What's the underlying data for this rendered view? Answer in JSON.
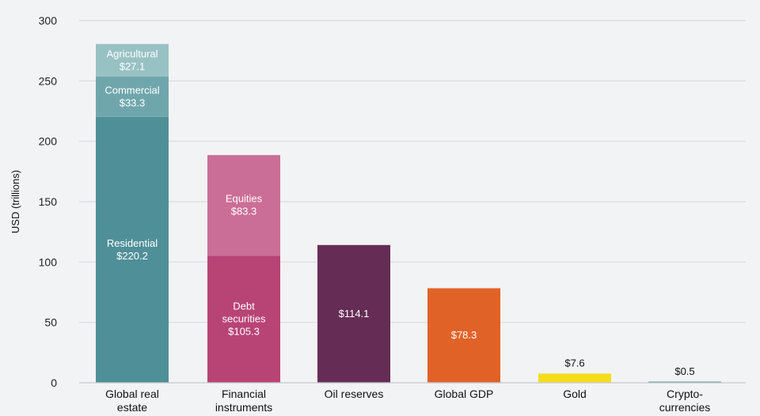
{
  "chart_data": {
    "type": "bar",
    "stacked": true,
    "ylabel": "USD (trillions)",
    "ylim": [
      0,
      300
    ],
    "y_ticks": [
      0,
      50,
      100,
      150,
      200,
      250,
      300
    ],
    "grid": true,
    "categories": [
      {
        "lines": [
          "Global real",
          "estate"
        ]
      },
      {
        "lines": [
          "Financial",
          "instruments"
        ]
      },
      {
        "lines": [
          "Oil reserves"
        ]
      },
      {
        "lines": [
          "Global GDP"
        ]
      },
      {
        "lines": [
          "Gold"
        ]
      },
      {
        "lines": [
          "Crypto-",
          "currencies"
        ]
      }
    ],
    "bars": [
      {
        "segments": [
          {
            "value": 220.2,
            "label": [
              "Residential",
              "$220.2"
            ],
            "color": "#4f8f98"
          },
          {
            "value": 33.3,
            "label": [
              "Commercial",
              "$33.3"
            ],
            "color": "#6fa6ac"
          },
          {
            "value": 27.1,
            "label": [
              "Agricultural",
              "$27.1"
            ],
            "color": "#98c1c4"
          }
        ]
      },
      {
        "segments": [
          {
            "value": 105.3,
            "label": [
              "Debt",
              "securities",
              "$105.3"
            ],
            "color": "#b84476"
          },
          {
            "value": 83.3,
            "label": [
              "Equities",
              "$83.3"
            ],
            "color": "#cb6e97"
          }
        ]
      },
      {
        "segments": [
          {
            "value": 114.1,
            "label": [
              "$114.1"
            ],
            "color": "#652d55"
          }
        ]
      },
      {
        "segments": [
          {
            "value": 78.3,
            "label": [
              "$78.3"
            ],
            "color": "#e16227"
          }
        ]
      },
      {
        "top_label": "$7.6",
        "segments": [
          {
            "value": 7.6,
            "label": [],
            "color": "#f5dd1e"
          }
        ]
      },
      {
        "top_label": "$0.5",
        "segments": [
          {
            "value": 0.5,
            "label": [],
            "color": "#5b9599"
          }
        ]
      }
    ]
  }
}
